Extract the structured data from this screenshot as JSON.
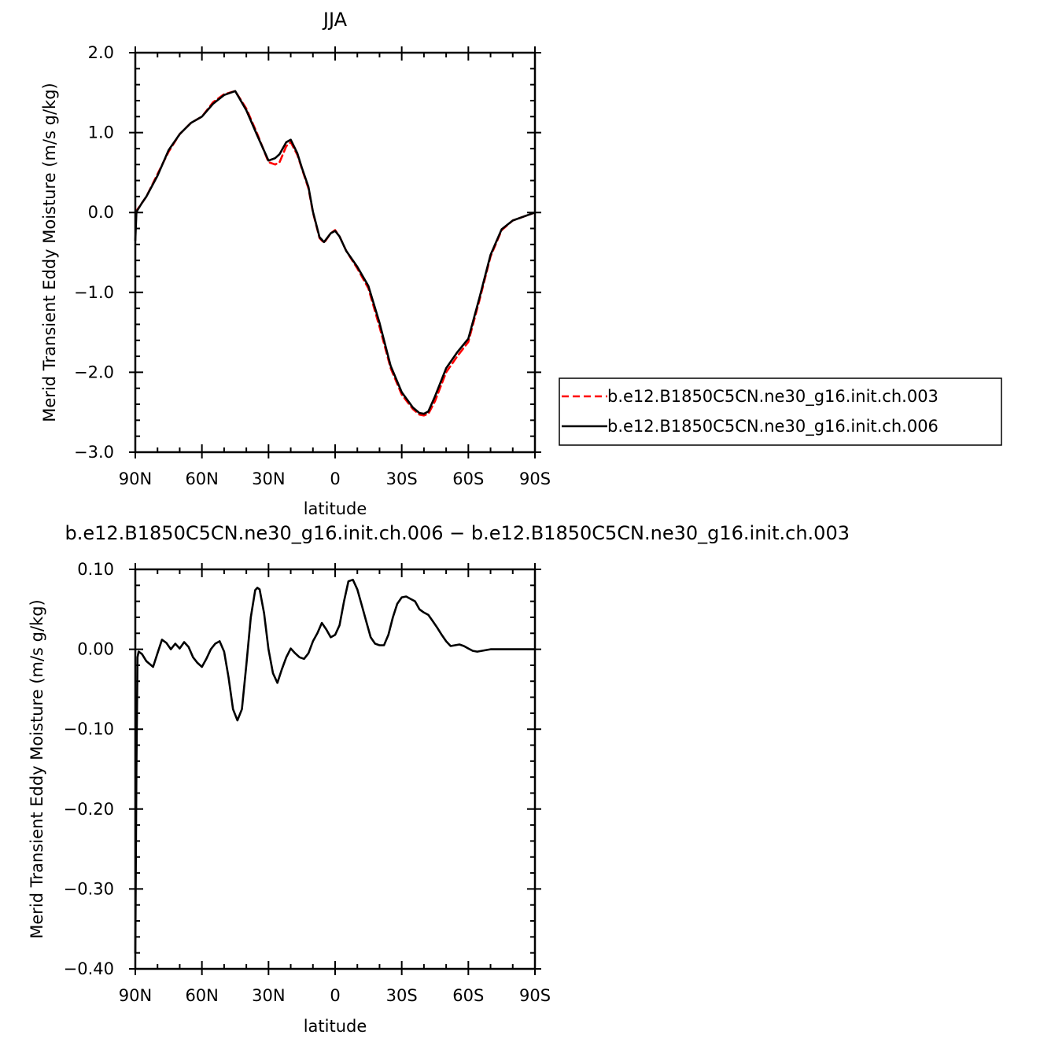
{
  "chart_data": [
    {
      "type": "line",
      "title": "JJA",
      "xlabel": "latitude",
      "ylabel": "Merid Transient Eddy Moisture (m/s g/kg)",
      "xlim": [
        90,
        -90
      ],
      "ylim": [
        -3.0,
        2.0
      ],
      "x_ticks": [
        90,
        60,
        30,
        0,
        -30,
        -60,
        -90
      ],
      "x_tick_labels": [
        "90N",
        "60N",
        "30N",
        "0",
        "30S",
        "60S",
        "90S"
      ],
      "y_ticks": [
        2.0,
        1.0,
        0.0,
        -1.0,
        -2.0,
        -3.0
      ],
      "y_tick_labels": [
        "2.0",
        "1.0",
        "0.0",
        "−1.0",
        "−2.0",
        "−3.0"
      ],
      "legend_position": "right",
      "series": [
        {
          "name": "b.e12.B1850C5CN.ne30_g16.init.ch.003",
          "color": "#ff0000",
          "dash": "dashed",
          "x": [
            90,
            85,
            80,
            75,
            70,
            65,
            60,
            55,
            50,
            45,
            40,
            35,
            30,
            27,
            25,
            22,
            20,
            17,
            15,
            12,
            10,
            7,
            5,
            2,
            0,
            -2,
            -5,
            -10,
            -15,
            -20,
            -25,
            -30,
            -35,
            -38,
            -40,
            -42,
            -45,
            -50,
            -55,
            -60,
            -65,
            -70,
            -75,
            -80,
            -85,
            -90
          ],
          "y": [
            0.0,
            0.2,
            0.48,
            0.76,
            0.98,
            1.12,
            1.2,
            1.38,
            1.48,
            1.52,
            1.3,
            0.98,
            0.63,
            0.6,
            0.63,
            0.83,
            0.88,
            0.72,
            0.55,
            0.3,
            0.0,
            -0.32,
            -0.38,
            -0.26,
            -0.22,
            -0.3,
            -0.48,
            -0.7,
            -0.95,
            -1.43,
            -1.95,
            -2.28,
            -2.46,
            -2.53,
            -2.54,
            -2.52,
            -2.36,
            -2.0,
            -1.8,
            -1.62,
            -1.1,
            -0.55,
            -0.22,
            -0.1,
            -0.05,
            0.0
          ]
        },
        {
          "name": "b.e12.B1850C5CN.ne30_g16.init.ch.006",
          "color": "#000000",
          "dash": "solid",
          "x": [
            90,
            89.5,
            89,
            87,
            85,
            80,
            75,
            70,
            65,
            60,
            55,
            50,
            45,
            40,
            35,
            30,
            27,
            25,
            22,
            20,
            17,
            15,
            12,
            10,
            7,
            5,
            2,
            0,
            -2,
            -5,
            -10,
            -15,
            -20,
            -25,
            -30,
            -35,
            -38,
            -40,
            -42,
            -45,
            -50,
            -55,
            -60,
            -65,
            -70,
            -75,
            -80,
            -85,
            -90
          ],
          "y": [
            -0.35,
            0.0,
            0.03,
            0.12,
            0.2,
            0.46,
            0.78,
            0.98,
            1.12,
            1.2,
            1.36,
            1.47,
            1.52,
            1.28,
            0.96,
            0.65,
            0.68,
            0.73,
            0.88,
            0.91,
            0.74,
            0.56,
            0.32,
            0.01,
            -0.31,
            -0.37,
            -0.26,
            -0.23,
            -0.3,
            -0.48,
            -0.68,
            -0.92,
            -1.38,
            -1.92,
            -2.25,
            -2.44,
            -2.51,
            -2.52,
            -2.49,
            -2.3,
            -1.95,
            -1.75,
            -1.58,
            -1.07,
            -0.53,
            -0.21,
            -0.1,
            -0.05,
            0.0
          ]
        }
      ]
    },
    {
      "type": "line",
      "title": "b.e12.B1850C5CN.ne30_g16.init.ch.006 − b.e12.B1850C5CN.ne30_g16.init.ch.003",
      "xlabel": "latitude",
      "ylabel": "Merid Transient Eddy Moisture (m/s g/kg)",
      "xlim": [
        90,
        -90
      ],
      "ylim": [
        -0.4,
        0.1
      ],
      "x_ticks": [
        90,
        60,
        30,
        0,
        -30,
        -60,
        -90
      ],
      "x_tick_labels": [
        "90N",
        "60N",
        "30N",
        "0",
        "30S",
        "60S",
        "90S"
      ],
      "y_ticks": [
        0.1,
        0.0,
        -0.1,
        -0.2,
        -0.3,
        -0.4
      ],
      "y_tick_labels": [
        "0.10",
        "0.00",
        "−0.10",
        "−0.20",
        "−0.30",
        "−0.40"
      ],
      "series": [
        {
          "color": "#000000",
          "dash": "solid",
          "x": [
            90,
            89.5,
            89,
            88.5,
            87,
            85,
            82,
            80,
            78,
            76,
            74,
            72,
            70,
            68,
            66,
            64,
            62,
            60,
            58,
            56,
            54,
            52,
            50,
            48,
            46,
            44,
            42,
            40,
            38,
            36,
            35,
            34,
            32,
            30,
            28,
            26,
            24,
            22,
            20,
            18,
            16,
            14,
            12,
            10,
            8,
            6,
            4,
            2,
            0,
            -2,
            -4,
            -6,
            -8,
            -10,
            -12,
            -14,
            -16,
            -18,
            -20,
            -22,
            -24,
            -26,
            -28,
            -30,
            -32,
            -34,
            -36,
            -38,
            -40,
            -42,
            -44,
            -46,
            -48,
            -50,
            -52,
            -54,
            -56,
            -58,
            -60,
            -62,
            -64,
            -66,
            -68,
            -70,
            -72,
            -74,
            -76,
            -78,
            -80,
            -82,
            -84,
            -86,
            -88,
            -90
          ],
          "y": [
            -0.38,
            -0.15,
            -0.01,
            -0.003,
            -0.006,
            -0.015,
            -0.022,
            -0.005,
            0.012,
            0.008,
            0.0,
            0.007,
            0.001,
            0.009,
            0.003,
            -0.01,
            -0.017,
            -0.022,
            -0.012,
            0.0,
            0.007,
            0.01,
            -0.003,
            -0.035,
            -0.075,
            -0.089,
            -0.075,
            -0.02,
            0.04,
            0.074,
            0.077,
            0.075,
            0.045,
            0.0,
            -0.03,
            -0.042,
            -0.025,
            -0.01,
            0.001,
            -0.005,
            -0.01,
            -0.012,
            -0.005,
            0.01,
            0.02,
            0.033,
            0.025,
            0.015,
            0.018,
            0.03,
            0.06,
            0.085,
            0.087,
            0.075,
            0.055,
            0.035,
            0.015,
            0.007,
            0.005,
            0.005,
            0.018,
            0.04,
            0.057,
            0.065,
            0.066,
            0.063,
            0.06,
            0.05,
            0.046,
            0.043,
            0.035,
            0.027,
            0.018,
            0.01,
            0.004,
            0.005,
            0.006,
            0.004,
            0.001,
            -0.002,
            -0.003,
            -0.002,
            -0.001,
            0.0,
            0.0,
            0.0,
            0.0,
            0.0,
            0.0,
            0.0,
            0.0,
            0.0,
            0.0,
            0.0
          ]
        }
      ]
    }
  ]
}
